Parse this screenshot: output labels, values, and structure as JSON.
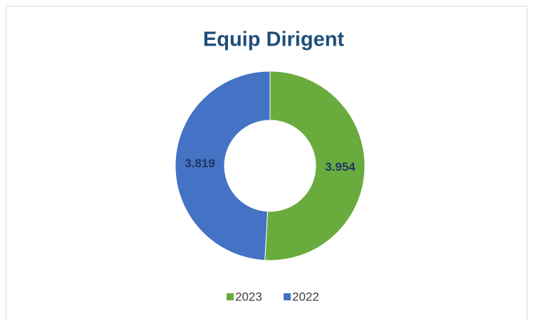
{
  "chart_data": {
    "type": "donut",
    "title": "Equip Dirigent",
    "categories": [
      "2023",
      "2022"
    ],
    "values": [
      3.954,
      3.819
    ],
    "colors": [
      "#6aab3e",
      "#4472c4"
    ],
    "legend": "bottom"
  }
}
